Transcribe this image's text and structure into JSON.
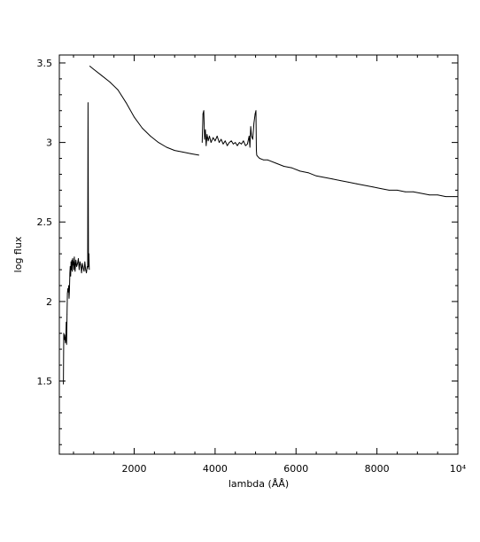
{
  "chart_data": {
    "type": "line",
    "title": "",
    "xlabel": "lambda (ÅÅ)",
    "ylabel": "log flux",
    "xlim": [
      150,
      10000
    ],
    "ylim": [
      1.04,
      3.55
    ],
    "x_ticks": [
      2000,
      4000,
      6000,
      8000,
      10000
    ],
    "x_tick_labels": [
      "2000",
      "4000",
      "6000",
      "8000",
      "10⁴"
    ],
    "y_ticks": [
      1.5,
      2,
      2.5,
      3,
      3.5
    ],
    "y_tick_labels": [
      "1.5",
      "2",
      "2.5",
      "3",
      "3.5"
    ],
    "grid": false,
    "legend": "none",
    "series": [
      {
        "x": [
          250,
          260,
          270,
          280,
          290,
          300,
          310,
          320,
          330,
          340,
          350,
          360,
          370,
          380,
          390,
          400,
          410,
          420,
          430,
          440,
          450,
          460,
          470,
          480,
          490,
          500,
          510,
          520,
          530,
          540,
          560,
          580,
          600,
          620,
          640,
          660,
          680,
          700,
          720,
          740,
          760,
          780,
          800,
          820,
          840,
          850,
          860,
          870,
          880,
          890
        ],
        "y": [
          1.48,
          1.8,
          1.76,
          1.79,
          1.77,
          1.74,
          1.76,
          1.87,
          1.73,
          1.92,
          2.05,
          2.08,
          2.06,
          2.1,
          2.02,
          2.07,
          2.18,
          2.22,
          2.16,
          2.25,
          2.2,
          2.26,
          2.19,
          2.27,
          2.23,
          2.25,
          2.2,
          2.28,
          2.24,
          2.19,
          2.26,
          2.22,
          2.24,
          2.27,
          2.2,
          2.25,
          2.23,
          2.18,
          2.24,
          2.21,
          2.19,
          2.25,
          2.2,
          2.18,
          2.22,
          2.21,
          3.25,
          2.22,
          2.3,
          2.2
        ]
      },
      {
        "x": [
          900,
          1000,
          1200,
          1400,
          1600,
          1800,
          2000,
          2200,
          2400,
          2600,
          2800,
          3000,
          3200,
          3400,
          3600
        ],
        "y": [
          3.48,
          3.46,
          3.42,
          3.38,
          3.33,
          3.25,
          3.16,
          3.09,
          3.04,
          3.0,
          2.97,
          2.95,
          2.94,
          2.93,
          2.92
        ]
      },
      {
        "x": [
          3680,
          3700,
          3720,
          3740,
          3760,
          3780,
          3800,
          3830,
          3860,
          3900,
          3950,
          4000,
          4050,
          4100,
          4150,
          4200,
          4250,
          4300,
          4350,
          4400,
          4450,
          4500,
          4550,
          4600,
          4650,
          4700,
          4750,
          4800,
          4840,
          4860,
          4880,
          4900,
          4930,
          4960,
          4990,
          5010,
          5020,
          5030,
          5060,
          5100,
          5200,
          5300
        ],
        "y": [
          3.0,
          3.18,
          3.2,
          3.02,
          3.08,
          2.98,
          3.05,
          3.01,
          3.04,
          3.0,
          3.03,
          3.01,
          3.04,
          3.0,
          3.02,
          2.99,
          3.01,
          2.98,
          3.0,
          3.01,
          2.99,
          3.0,
          2.98,
          3.0,
          2.99,
          3.01,
          2.98,
          2.99,
          3.04,
          2.97,
          3.1,
          3.04,
          3.02,
          3.12,
          3.18,
          3.2,
          2.95,
          2.92,
          2.91,
          2.9,
          2.89,
          2.89
        ]
      },
      {
        "x": [
          5300,
          5500,
          5700,
          5900,
          6100,
          6300,
          6500,
          6700,
          6900,
          7100,
          7300,
          7500,
          7700,
          7900,
          8100,
          8300,
          8500,
          8700,
          8900,
          9100,
          9300,
          9500,
          9700,
          9900,
          10000
        ],
        "y": [
          2.89,
          2.87,
          2.85,
          2.84,
          2.82,
          2.81,
          2.79,
          2.78,
          2.77,
          2.76,
          2.75,
          2.74,
          2.73,
          2.72,
          2.71,
          2.7,
          2.7,
          2.69,
          2.69,
          2.68,
          2.67,
          2.67,
          2.66,
          2.66,
          2.66
        ]
      }
    ]
  }
}
